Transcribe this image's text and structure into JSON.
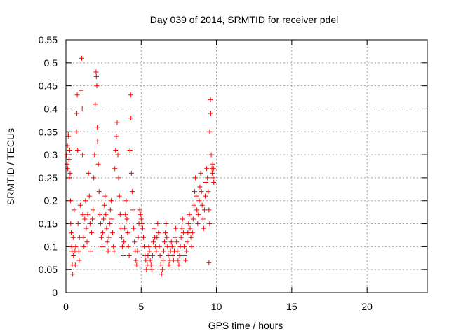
{
  "chart_data": {
    "type": "scatter",
    "title": "Day 039 of 2014, SRMTID for receiver pdel",
    "xlabel": "GPS time / hours",
    "ylabel": "SRMTID / TECUs",
    "xlim": [
      0,
      24
    ],
    "ylim": [
      0,
      0.55
    ],
    "xticks": [
      0,
      5,
      10,
      15,
      20
    ],
    "xtick_labels": [
      "0",
      "5",
      "10",
      "15",
      "20"
    ],
    "yticks": [
      0,
      0.05,
      0.1,
      0.15,
      0.2,
      0.25,
      0.3,
      0.35,
      0.4,
      0.45,
      0.5,
      0.55
    ],
    "ytick_labels": [
      "0",
      "0.05",
      "0.1",
      "0.15",
      "0.2",
      "0.25",
      "0.3",
      "0.35",
      "0.4",
      "0.45",
      "0.5",
      "0.55"
    ],
    "grid": true,
    "marker": "+",
    "color": "#ff0000",
    "series": [
      {
        "name": "SRMTID",
        "points": [
          [
            0.05,
            0.3
          ],
          [
            0.08,
            0.28
          ],
          [
            0.1,
            0.32
          ],
          [
            0.12,
            0.27
          ],
          [
            0.15,
            0.345
          ],
          [
            0.18,
            0.34
          ],
          [
            0.2,
            0.29
          ],
          [
            0.22,
            0.25
          ],
          [
            0.25,
            0.31
          ],
          [
            0.28,
            0.26
          ],
          [
            0.3,
            0.2
          ],
          [
            0.32,
            0.15
          ],
          [
            0.35,
            0.13
          ],
          [
            0.38,
            0.1
          ],
          [
            0.4,
            0.09
          ],
          [
            0.42,
            0.06
          ],
          [
            0.45,
            0.04
          ],
          [
            0.48,
            0.12
          ],
          [
            0.5,
            0.08
          ],
          [
            0.55,
            0.18
          ],
          [
            0.6,
            0.09
          ],
          [
            0.62,
            0.06
          ],
          [
            0.65,
            0.1
          ],
          [
            0.7,
            0.35
          ],
          [
            0.72,
            0.39
          ],
          [
            0.75,
            0.43
          ],
          [
            0.78,
            0.31
          ],
          [
            0.8,
            0.15
          ],
          [
            0.85,
            0.09
          ],
          [
            0.88,
            0.07
          ],
          [
            0.9,
            0.12
          ],
          [
            0.95,
            0.19
          ],
          [
            1.0,
            0.44
          ],
          [
            1.05,
            0.51
          ],
          [
            1.08,
            0.4
          ],
          [
            1.1,
            0.3
          ],
          [
            1.12,
            0.17
          ],
          [
            1.15,
            0.12
          ],
          [
            1.2,
            0.1
          ],
          [
            1.25,
            0.16
          ],
          [
            1.3,
            0.2
          ],
          [
            1.35,
            0.14
          ],
          [
            1.4,
            0.11
          ],
          [
            1.45,
            0.17
          ],
          [
            1.5,
            0.26
          ],
          [
            1.55,
            0.21
          ],
          [
            1.6,
            0.15
          ],
          [
            1.65,
            0.09
          ],
          [
            1.7,
            0.13
          ],
          [
            1.75,
            0.16
          ],
          [
            1.8,
            0.18
          ],
          [
            1.85,
            0.25
          ],
          [
            1.9,
            0.3
          ],
          [
            1.95,
            0.41
          ],
          [
            2.0,
            0.48
          ],
          [
            2.02,
            0.47
          ],
          [
            2.05,
            0.45
          ],
          [
            2.08,
            0.36
          ],
          [
            2.1,
            0.33
          ],
          [
            2.15,
            0.28
          ],
          [
            2.2,
            0.22
          ],
          [
            2.25,
            0.17
          ],
          [
            2.3,
            0.15
          ],
          [
            2.35,
            0.12
          ],
          [
            2.4,
            0.1
          ],
          [
            2.45,
            0.13
          ],
          [
            2.5,
            0.16
          ],
          [
            2.55,
            0.19
          ],
          [
            2.6,
            0.21
          ],
          [
            2.65,
            0.17
          ],
          [
            2.7,
            0.14
          ],
          [
            2.75,
            0.11
          ],
          [
            2.8,
            0.09
          ],
          [
            2.85,
            0.12
          ],
          [
            2.9,
            0.15
          ],
          [
            2.95,
            0.18
          ],
          [
            3.0,
            0.2
          ],
          [
            3.05,
            0.16
          ],
          [
            3.1,
            0.13
          ],
          [
            3.15,
            0.1
          ],
          [
            3.2,
            0.09
          ],
          [
            3.25,
            0.27
          ],
          [
            3.3,
            0.31
          ],
          [
            3.35,
            0.34
          ],
          [
            3.4,
            0.37
          ],
          [
            3.45,
            0.3
          ],
          [
            3.5,
            0.25
          ],
          [
            3.55,
            0.21
          ],
          [
            3.6,
            0.17
          ],
          [
            3.65,
            0.14
          ],
          [
            3.7,
            0.12
          ],
          [
            3.75,
            0.1
          ],
          [
            3.8,
            0.08
          ],
          [
            3.85,
            0.11
          ],
          [
            3.9,
            0.14
          ],
          [
            3.95,
            0.17
          ],
          [
            4.0,
            0.2
          ],
          [
            4.05,
            0.16
          ],
          [
            4.1,
            0.13
          ],
          [
            4.15,
            0.1
          ],
          [
            4.2,
            0.08
          ],
          [
            4.25,
            0.31
          ],
          [
            4.3,
            0.43
          ],
          [
            4.32,
            0.38
          ],
          [
            4.35,
            0.26
          ],
          [
            4.4,
            0.22
          ],
          [
            4.45,
            0.18
          ],
          [
            4.5,
            0.14
          ],
          [
            4.55,
            0.11
          ],
          [
            4.6,
            0.09
          ],
          [
            4.65,
            0.07
          ],
          [
            4.7,
            0.06
          ],
          [
            4.75,
            0.09
          ],
          [
            4.8,
            0.12
          ],
          [
            4.85,
            0.15
          ],
          [
            4.9,
            0.18
          ],
          [
            4.95,
            0.17
          ],
          [
            5.0,
            0.16
          ],
          [
            5.05,
            0.15
          ],
          [
            5.1,
            0.14
          ],
          [
            5.15,
            0.12
          ],
          [
            5.2,
            0.1
          ],
          [
            5.25,
            0.08
          ],
          [
            5.3,
            0.07
          ],
          [
            5.35,
            0.05
          ],
          [
            5.4,
            0.06
          ],
          [
            5.45,
            0.08
          ],
          [
            5.5,
            0.1
          ],
          [
            5.55,
            0.09
          ],
          [
            5.6,
            0.07
          ],
          [
            5.65,
            0.06
          ],
          [
            5.7,
            0.05
          ],
          [
            5.75,
            0.08
          ],
          [
            5.8,
            0.11
          ],
          [
            5.85,
            0.14
          ],
          [
            5.9,
            0.12
          ],
          [
            5.95,
            0.1
          ],
          [
            6.0,
            0.09
          ],
          [
            6.05,
            0.12
          ],
          [
            6.1,
            0.15
          ],
          [
            6.15,
            0.13
          ],
          [
            6.2,
            0.1
          ],
          [
            6.25,
            0.08
          ],
          [
            6.3,
            0.06
          ],
          [
            6.35,
            0.04
          ],
          [
            6.4,
            0.05
          ],
          [
            6.45,
            0.07
          ],
          [
            6.5,
            0.09
          ],
          [
            6.55,
            0.11
          ],
          [
            6.6,
            0.13
          ],
          [
            6.65,
            0.15
          ],
          [
            6.7,
            0.12
          ],
          [
            6.75,
            0.1
          ],
          [
            6.8,
            0.08
          ],
          [
            6.85,
            0.06
          ],
          [
            6.9,
            0.07
          ],
          [
            6.95,
            0.09
          ],
          [
            7.0,
            0.11
          ],
          [
            7.05,
            0.1
          ],
          [
            7.1,
            0.08
          ],
          [
            7.15,
            0.07
          ],
          [
            7.2,
            0.09
          ],
          [
            7.25,
            0.12
          ],
          [
            7.3,
            0.14
          ],
          [
            7.35,
            0.11
          ],
          [
            7.4,
            0.09
          ],
          [
            7.45,
            0.07
          ],
          [
            7.5,
            0.06
          ],
          [
            7.55,
            0.08
          ],
          [
            7.6,
            0.1
          ],
          [
            7.65,
            0.12
          ],
          [
            7.7,
            0.14
          ],
          [
            7.75,
            0.16
          ],
          [
            7.8,
            0.13
          ],
          [
            7.85,
            0.1
          ],
          [
            7.9,
            0.08
          ],
          [
            7.95,
            0.07
          ],
          [
            8.0,
            0.09
          ],
          [
            8.05,
            0.11
          ],
          [
            8.1,
            0.13
          ],
          [
            8.15,
            0.15
          ],
          [
            8.2,
            0.17
          ],
          [
            8.25,
            0.14
          ],
          [
            8.3,
            0.12
          ],
          [
            8.35,
            0.1
          ],
          [
            8.4,
            0.13
          ],
          [
            8.45,
            0.16
          ],
          [
            8.5,
            0.19
          ],
          [
            8.55,
            0.22
          ],
          [
            8.6,
            0.25
          ],
          [
            8.65,
            0.21
          ],
          [
            8.7,
            0.18
          ],
          [
            8.75,
            0.15
          ],
          [
            8.8,
            0.17
          ],
          [
            8.85,
            0.2
          ],
          [
            8.9,
            0.23
          ],
          [
            8.95,
            0.26
          ],
          [
            9.0,
            0.22
          ],
          [
            9.05,
            0.19
          ],
          [
            9.1,
            0.16
          ],
          [
            9.15,
            0.14
          ],
          [
            9.2,
            0.18
          ],
          [
            9.25,
            0.21
          ],
          [
            9.3,
            0.24
          ],
          [
            9.35,
            0.27
          ],
          [
            9.4,
            0.25
          ],
          [
            9.45,
            0.22
          ],
          [
            9.5,
            0.18
          ],
          [
            9.55,
            0.35
          ],
          [
            9.6,
            0.42
          ],
          [
            9.62,
            0.39
          ],
          [
            9.65,
            0.3
          ],
          [
            9.7,
            0.27
          ],
          [
            9.72,
            0.26
          ],
          [
            9.75,
            0.28
          ],
          [
            9.78,
            0.25
          ],
          [
            9.8,
            0.27
          ],
          [
            9.82,
            0.24
          ],
          [
            9.5,
            0.065
          ],
          [
            9.55,
            0.15
          ]
        ]
      }
    ]
  }
}
